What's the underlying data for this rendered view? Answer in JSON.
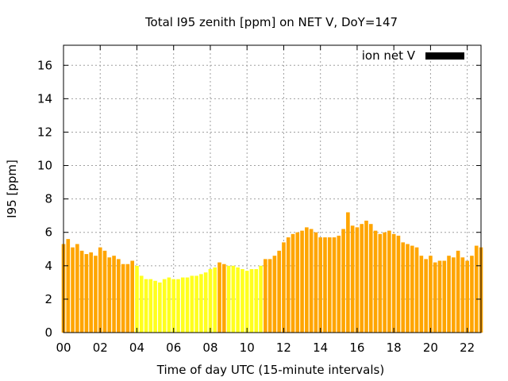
{
  "chart_data": {
    "type": "bar",
    "title": "Total I95 zenith [ppm] on NET V, DoY=147",
    "xlabel": "Time of day UTC (15-minute intervals)",
    "ylabel": "I95 [ppm]",
    "xlim": [
      0,
      22.75
    ],
    "ylim": [
      0,
      17.2
    ],
    "x_ticks": [
      0,
      2,
      4,
      6,
      8,
      10,
      12,
      14,
      16,
      18,
      20,
      22
    ],
    "x_tick_labels": [
      "00",
      "02",
      "04",
      "06",
      "08",
      "10",
      "12",
      "14",
      "16",
      "18",
      "20",
      "22"
    ],
    "y_ticks": [
      0,
      2,
      4,
      6,
      8,
      10,
      12,
      14,
      16
    ],
    "y_tick_labels": [
      "0",
      "2",
      "4",
      "6",
      "8",
      "10",
      "12",
      "14",
      "16"
    ],
    "grid": true,
    "bar_interval_hours": 0.25,
    "legend": {
      "position": "top-right",
      "entries": [
        {
          "label": "ion net V",
          "color": "#000000"
        }
      ]
    },
    "colors": {
      "orange": "#ffa500",
      "yellow": "#ffff1e"
    },
    "series": [
      {
        "name": "ion net V",
        "start_hour": 0,
        "values": [
          5.3,
          5.6,
          5.1,
          5.3,
          4.9,
          4.7,
          4.8,
          4.6,
          5.1,
          4.9,
          4.5,
          4.6,
          4.4,
          4.1,
          4.1,
          4.3,
          4.0,
          3.4,
          3.2,
          3.2,
          3.1,
          3.0,
          3.2,
          3.3,
          3.2,
          3.2,
          3.3,
          3.3,
          3.4,
          3.4,
          3.5,
          3.6,
          3.8,
          3.9,
          4.2,
          4.1,
          4.0,
          4.0,
          3.9,
          3.8,
          3.7,
          3.8,
          3.8,
          4.0,
          4.4,
          4.4,
          4.6,
          4.9,
          5.4,
          5.7,
          5.9,
          6.0,
          6.1,
          6.3,
          6.2,
          6.0,
          5.7,
          5.7,
          5.7,
          5.7,
          5.8,
          6.2,
          7.2,
          6.4,
          6.3,
          6.5,
          6.7,
          6.5,
          6.1,
          5.9,
          6.0,
          6.1,
          5.9,
          5.8,
          5.4,
          5.3,
          5.2,
          5.1,
          4.6,
          4.4,
          4.6,
          4.2,
          4.3,
          4.3,
          4.6,
          4.5,
          4.9,
          4.5,
          4.3,
          4.6,
          5.2,
          5.1
        ],
        "bar_colors": [
          "orange",
          "orange",
          "orange",
          "orange",
          "orange",
          "orange",
          "orange",
          "orange",
          "orange",
          "orange",
          "orange",
          "orange",
          "orange",
          "orange",
          "orange",
          "orange",
          "yellow",
          "yellow",
          "yellow",
          "yellow",
          "yellow",
          "yellow",
          "yellow",
          "yellow",
          "yellow",
          "yellow",
          "yellow",
          "yellow",
          "yellow",
          "yellow",
          "yellow",
          "yellow",
          "yellow",
          "yellow",
          "orange",
          "orange",
          "yellow",
          "yellow",
          "yellow",
          "yellow",
          "yellow",
          "yellow",
          "yellow",
          "yellow",
          "orange",
          "orange",
          "orange",
          "orange",
          "orange",
          "orange",
          "orange",
          "orange",
          "orange",
          "orange",
          "orange",
          "orange",
          "orange",
          "orange",
          "orange",
          "orange",
          "orange",
          "orange",
          "orange",
          "orange",
          "orange",
          "orange",
          "orange",
          "orange",
          "orange",
          "orange",
          "orange",
          "orange",
          "orange",
          "orange",
          "orange",
          "orange",
          "orange",
          "orange",
          "orange",
          "orange",
          "orange",
          "orange",
          "orange",
          "orange",
          "orange",
          "orange",
          "orange",
          "orange",
          "orange",
          "orange",
          "orange",
          "orange"
        ]
      }
    ]
  }
}
